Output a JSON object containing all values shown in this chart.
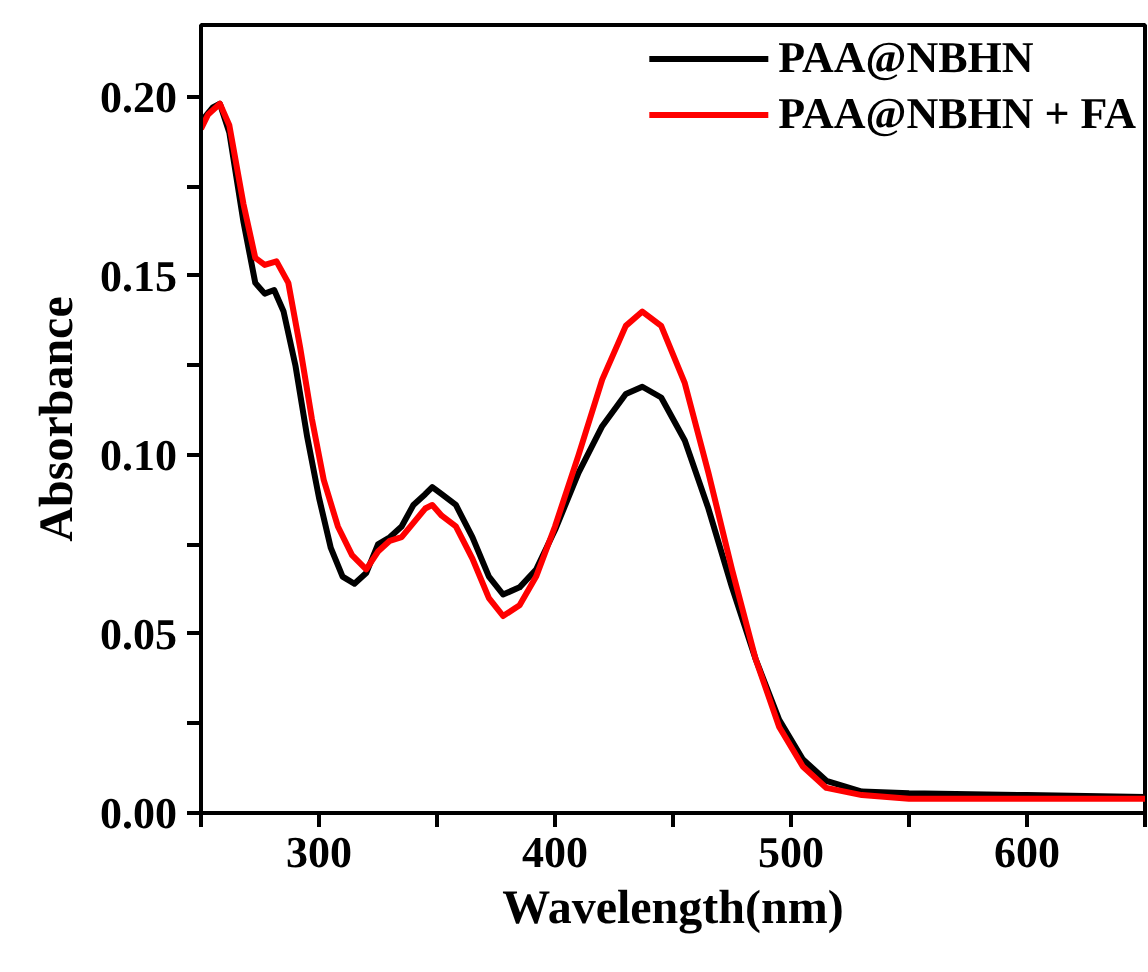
{
  "chart_data": {
    "type": "line",
    "xlabel": "Wavelength(nm)",
    "ylabel": "Absorbance",
    "xlim": [
      250,
      650
    ],
    "xticks": [
      {
        "value": 250,
        "label": null
      },
      300,
      {
        "value": 350,
        "label": null
      },
      400,
      {
        "value": 450,
        "label": null
      },
      500,
      {
        "value": 550,
        "label": null
      },
      600,
      {
        "value": 650,
        "label": null
      }
    ],
    "ylim": [
      0,
      0.22
    ],
    "yticks": [
      {
        "value": 0,
        "label": "0.00"
      },
      {
        "value": 0.025,
        "label": null
      },
      0.05,
      {
        "value": 0.075,
        "label": null
      },
      {
        "value": 0.1,
        "label": "0.10"
      },
      {
        "value": 0.125,
        "label": null
      },
      0.15,
      {
        "value": 0.175,
        "label": null
      },
      {
        "value": 0.2,
        "label": "0.20"
      }
    ],
    "grid": false,
    "legend": "top right",
    "marker": "none",
    "line_style": "solid",
    "series": [
      {
        "name": "PAA@NBHN",
        "color": "#000000",
        "x": [
          250,
          255,
          258,
          262,
          268,
          273,
          277,
          281,
          285,
          290,
          295,
          300,
          305,
          310,
          315,
          320,
          325,
          330,
          335,
          340,
          345,
          348,
          352,
          358,
          365,
          372,
          378,
          385,
          392,
          400,
          410,
          420,
          430,
          437,
          445,
          455,
          465,
          475,
          485,
          495,
          505,
          515,
          530,
          550,
          600,
          650
        ],
        "values": [
          0.193,
          0.197,
          0.198,
          0.19,
          0.165,
          0.148,
          0.145,
          0.146,
          0.14,
          0.125,
          0.105,
          0.088,
          0.074,
          0.066,
          0.064,
          0.067,
          0.075,
          0.077,
          0.08,
          0.086,
          0.089,
          0.091,
          0.089,
          0.086,
          0.077,
          0.066,
          0.061,
          0.063,
          0.068,
          0.079,
          0.095,
          0.108,
          0.117,
          0.119,
          0.116,
          0.104,
          0.085,
          0.063,
          0.043,
          0.026,
          0.015,
          0.009,
          0.006,
          0.0055,
          0.005,
          0.0045
        ]
      },
      {
        "name": "PAA@NBHN + FA",
        "color": "#ff0000",
        "x": [
          250,
          253,
          258,
          262,
          268,
          273,
          277,
          282,
          287,
          292,
          297,
          302,
          308,
          314,
          320,
          325,
          330,
          335,
          340,
          345,
          348,
          352,
          358,
          365,
          372,
          378,
          385,
          392,
          400,
          410,
          420,
          430,
          437,
          445,
          455,
          465,
          475,
          485,
          495,
          505,
          515,
          530,
          550,
          600,
          650
        ],
        "values": [
          0.191,
          0.195,
          0.198,
          0.192,
          0.17,
          0.155,
          0.153,
          0.154,
          0.148,
          0.13,
          0.11,
          0.093,
          0.08,
          0.072,
          0.068,
          0.073,
          0.076,
          0.077,
          0.081,
          0.085,
          0.086,
          0.083,
          0.08,
          0.071,
          0.06,
          0.055,
          0.058,
          0.066,
          0.08,
          0.1,
          0.121,
          0.136,
          0.14,
          0.136,
          0.12,
          0.095,
          0.068,
          0.043,
          0.024,
          0.013,
          0.007,
          0.005,
          0.004,
          0.004,
          0.004
        ]
      }
    ]
  }
}
